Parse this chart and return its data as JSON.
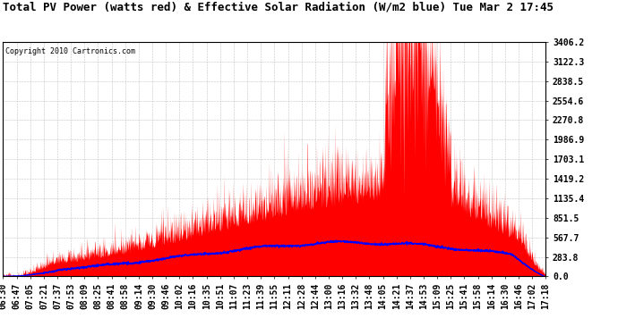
{
  "title": "Total PV Power (watts red) & Effective Solar Radiation (W/m2 blue) Tue Mar 2 17:45",
  "copyright": "Copyright 2010 Cartronics.com",
  "y_max": 3406.2,
  "y_ticks": [
    0.0,
    283.8,
    567.7,
    851.5,
    1135.4,
    1419.2,
    1703.1,
    1986.9,
    2270.8,
    2554.6,
    2838.5,
    3122.3,
    3406.2
  ],
  "x_labels": [
    "06:30",
    "06:47",
    "07:05",
    "07:21",
    "07:37",
    "07:53",
    "08:09",
    "08:25",
    "08:41",
    "08:58",
    "09:14",
    "09:30",
    "09:46",
    "10:02",
    "10:16",
    "10:35",
    "10:51",
    "11:07",
    "11:23",
    "11:39",
    "11:55",
    "12:11",
    "12:28",
    "12:44",
    "13:00",
    "13:16",
    "13:32",
    "13:48",
    "14:05",
    "14:21",
    "14:37",
    "14:53",
    "15:09",
    "15:25",
    "15:41",
    "15:58",
    "16:14",
    "16:30",
    "16:46",
    "17:02",
    "17:18"
  ],
  "bg_color": "#ffffff",
  "plot_bg_color": "#ffffff",
  "grid_color": "#aaaaaa",
  "red_color": "#ff0000",
  "blue_color": "#0000ff",
  "title_fontsize": 9,
  "tick_fontsize": 7
}
